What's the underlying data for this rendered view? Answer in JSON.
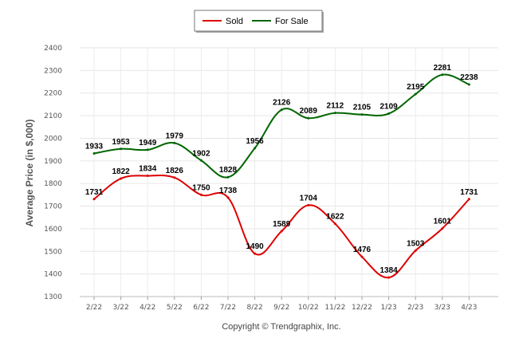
{
  "chart_data": {
    "type": "line",
    "categories": [
      "2/22",
      "3/22",
      "4/22",
      "5/22",
      "6/22",
      "7/22",
      "8/22",
      "9/22",
      "10/22",
      "11/22",
      "12/22",
      "1/23",
      "2/23",
      "3/23",
      "4/23"
    ],
    "series": [
      {
        "name": "Sold",
        "color": "#dd0000",
        "values": [
          1731,
          1822,
          1834,
          1826,
          1750,
          1738,
          1490,
          1589,
          1704,
          1622,
          1476,
          1384,
          1503,
          1601,
          1731
        ]
      },
      {
        "name": "For Sale",
        "color": "#006600",
        "values": [
          1933,
          1953,
          1949,
          1979,
          1902,
          1828,
          1956,
          2126,
          2089,
          2112,
          2105,
          2109,
          2195,
          2281,
          2238
        ]
      }
    ],
    "ylabel": "Average Price (in $,000)",
    "ylim": [
      1300,
      2400
    ],
    "yticks": [
      1300,
      1400,
      1500,
      1600,
      1700,
      1800,
      1900,
      2000,
      2100,
      2200,
      2300,
      2400
    ],
    "grid": true,
    "legend": "top-center"
  },
  "footer": {
    "copyright": "Copyright © Trendgraphix, Inc."
  }
}
